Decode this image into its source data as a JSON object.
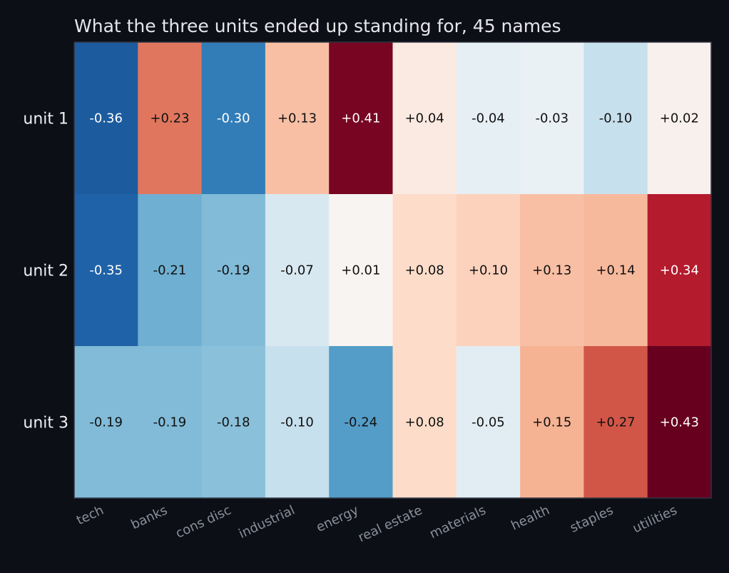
{
  "chart_data": {
    "type": "heatmap",
    "title": "What the three units ended up standing for, 45 names",
    "columns": [
      "tech",
      "banks",
      "cons disc",
      "industrial",
      "energy",
      "real estate",
      "materials",
      "health",
      "staples",
      "utilities"
    ],
    "rows": [
      "unit 1",
      "unit 2",
      "unit 3"
    ],
    "values": [
      [
        -0.36,
        0.23,
        -0.3,
        0.13,
        0.41,
        0.04,
        -0.04,
        -0.03,
        -0.1,
        0.02
      ],
      [
        -0.35,
        -0.21,
        -0.19,
        -0.07,
        0.01,
        0.08,
        0.1,
        0.13,
        0.14,
        0.34
      ],
      [
        -0.19,
        -0.19,
        -0.18,
        -0.1,
        -0.24,
        0.08,
        -0.05,
        0.15,
        0.27,
        0.43
      ]
    ],
    "labels": [
      [
        "-0.36",
        "+0.23",
        "-0.30",
        "+0.13",
        "+0.41",
        "+0.04",
        "-0.04",
        "-0.03",
        "-0.10",
        "+0.02"
      ],
      [
        "-0.35",
        "-0.21",
        "-0.19",
        "-0.07",
        "+0.01",
        "+0.08",
        "+0.10",
        "+0.13",
        "+0.14",
        "+0.34"
      ],
      [
        "-0.19",
        "-0.19",
        "-0.18",
        "-0.10",
        "-0.24",
        "+0.08",
        "-0.05",
        "+0.15",
        "+0.27",
        "+0.43"
      ]
    ],
    "colormap": "RdBu_r",
    "value_range": [
      -0.43,
      0.43
    ],
    "colors": {
      "background": "#0c0f16",
      "title": "#e6e6ea",
      "row_label": "#f0f0f2",
      "col_label": "#8a8f9c",
      "cell_text_dark": "#111111",
      "cell_text_light": "#ffffff"
    }
  }
}
